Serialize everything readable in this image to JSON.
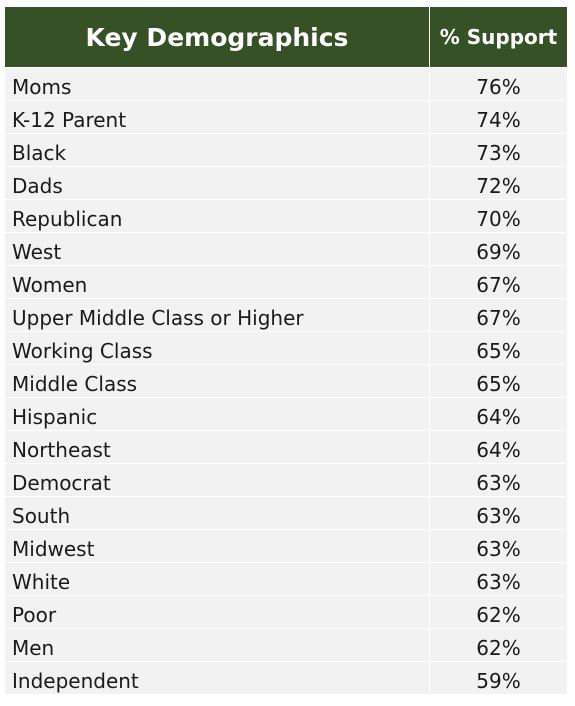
{
  "header": {
    "category": "Key Demographics",
    "value": "% Support",
    "background_color": "#375127"
  },
  "rows": [
    {
      "label": "Moms",
      "value": "76%"
    },
    {
      "label": "K-12 Parent",
      "value": "74%"
    },
    {
      "label": "Black",
      "value": "73%"
    },
    {
      "label": "Dads",
      "value": "72%"
    },
    {
      "label": "Republican",
      "value": "70%"
    },
    {
      "label": "West",
      "value": "69%"
    },
    {
      "label": "Women",
      "value": "67%"
    },
    {
      "label": "Upper Middle Class or Higher",
      "value": "67%"
    },
    {
      "label": "Working Class",
      "value": "65%"
    },
    {
      "label": "Middle Class",
      "value": "65%"
    },
    {
      "label": "Hispanic",
      "value": "64%"
    },
    {
      "label": "Northeast",
      "value": "64%"
    },
    {
      "label": "Democrat",
      "value": "63%"
    },
    {
      "label": "South",
      "value": "63%"
    },
    {
      "label": "Midwest",
      "value": "63%"
    },
    {
      "label": "White",
      "value": "63%"
    },
    {
      "label": "Poor",
      "value": "62%"
    },
    {
      "label": "Men",
      "value": "62%"
    },
    {
      "label": "Independent",
      "value": "59%"
    }
  ]
}
